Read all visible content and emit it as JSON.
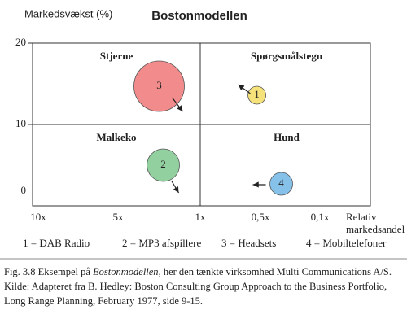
{
  "chart_data": {
    "type": "bubble",
    "title": "Bostonmodellen",
    "y_label": "Markedsvækst (%)",
    "x_label": [
      "Relativ",
      "markedsandel"
    ],
    "ylim": [
      0,
      20
    ],
    "yticks": [
      0,
      10,
      20
    ],
    "xticks": [
      {
        "value": 10,
        "label": "10x"
      },
      {
        "value": 5,
        "label": "5x"
      },
      {
        "value": 1,
        "label": "1x"
      },
      {
        "value": 0.5,
        "label": "0,5x"
      },
      {
        "value": 0.1,
        "label": "0,1x"
      }
    ],
    "quadrants": [
      "Stjerne",
      "Spørgsmålstegn",
      "Malkeko",
      "Hund"
    ],
    "labels": [
      "3",
      "1",
      "2",
      "4"
    ],
    "x": [
      3,
      0.53,
      2.8,
      0.36
    ],
    "values": [
      14.7,
      13.6,
      5,
      2.7
    ],
    "sizes": [
      31,
      11,
      20,
      14
    ],
    "colors": [
      "#f28b8b",
      "#f6e27a",
      "#93d0a0",
      "#86c1ea"
    ],
    "legend": [
      "1 = DAB Radio",
      "2 = MP3 afspillere",
      "3 = Headsets",
      "4 = Mobiltelefoner"
    ]
  },
  "caption": {
    "lines": [
      [
        "Fig. 3.8  Eksempel på ",
        "Bostonmodellen",
        ", her den tænkte virksomhed Multi Communications A/S."
      ],
      [
        "Kilde: Adapteret fra B. Hedley: Boston Consulting Group Approach to the Business Portfolio,"
      ],
      [
        "Long Range Planning, February 1977, side 9-15."
      ]
    ]
  }
}
